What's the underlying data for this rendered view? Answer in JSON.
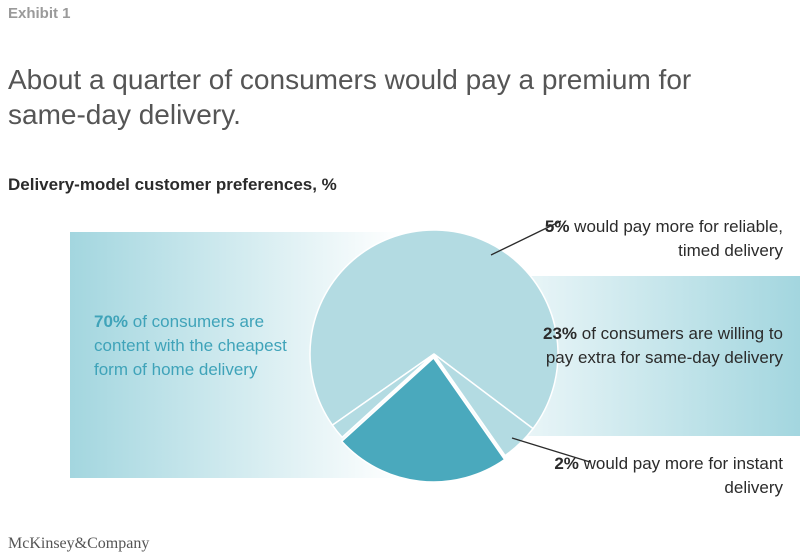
{
  "header": {
    "exhibit": "Exhibit 1",
    "title": "About a quarter of consumers would pay a premium for same-day delivery.",
    "subtitle": "Delivery-model customer preferences, %"
  },
  "colors": {
    "main_slice": "#b3dbe2",
    "slice_23": "#4aa9bd",
    "band": "#a3d6df",
    "slice_border": "#ffffff",
    "leader": "#2b2b2b"
  },
  "chart_data": {
    "type": "pie",
    "slices": [
      {
        "value": 70,
        "pct": "70%",
        "text": " of consumers are content with the cheapest form of home delivery"
      },
      {
        "value": 5,
        "pct": "5%",
        "text": " would pay more for reliable, timed delivery"
      },
      {
        "value": 23,
        "pct": "23%",
        "text": " of consumers are willing to pay extra for same-day delivery"
      },
      {
        "value": 2,
        "pct": "2%",
        "text": " would pay more for instant delivery"
      }
    ]
  },
  "footer": {
    "logo": "McKinsey&Company"
  }
}
